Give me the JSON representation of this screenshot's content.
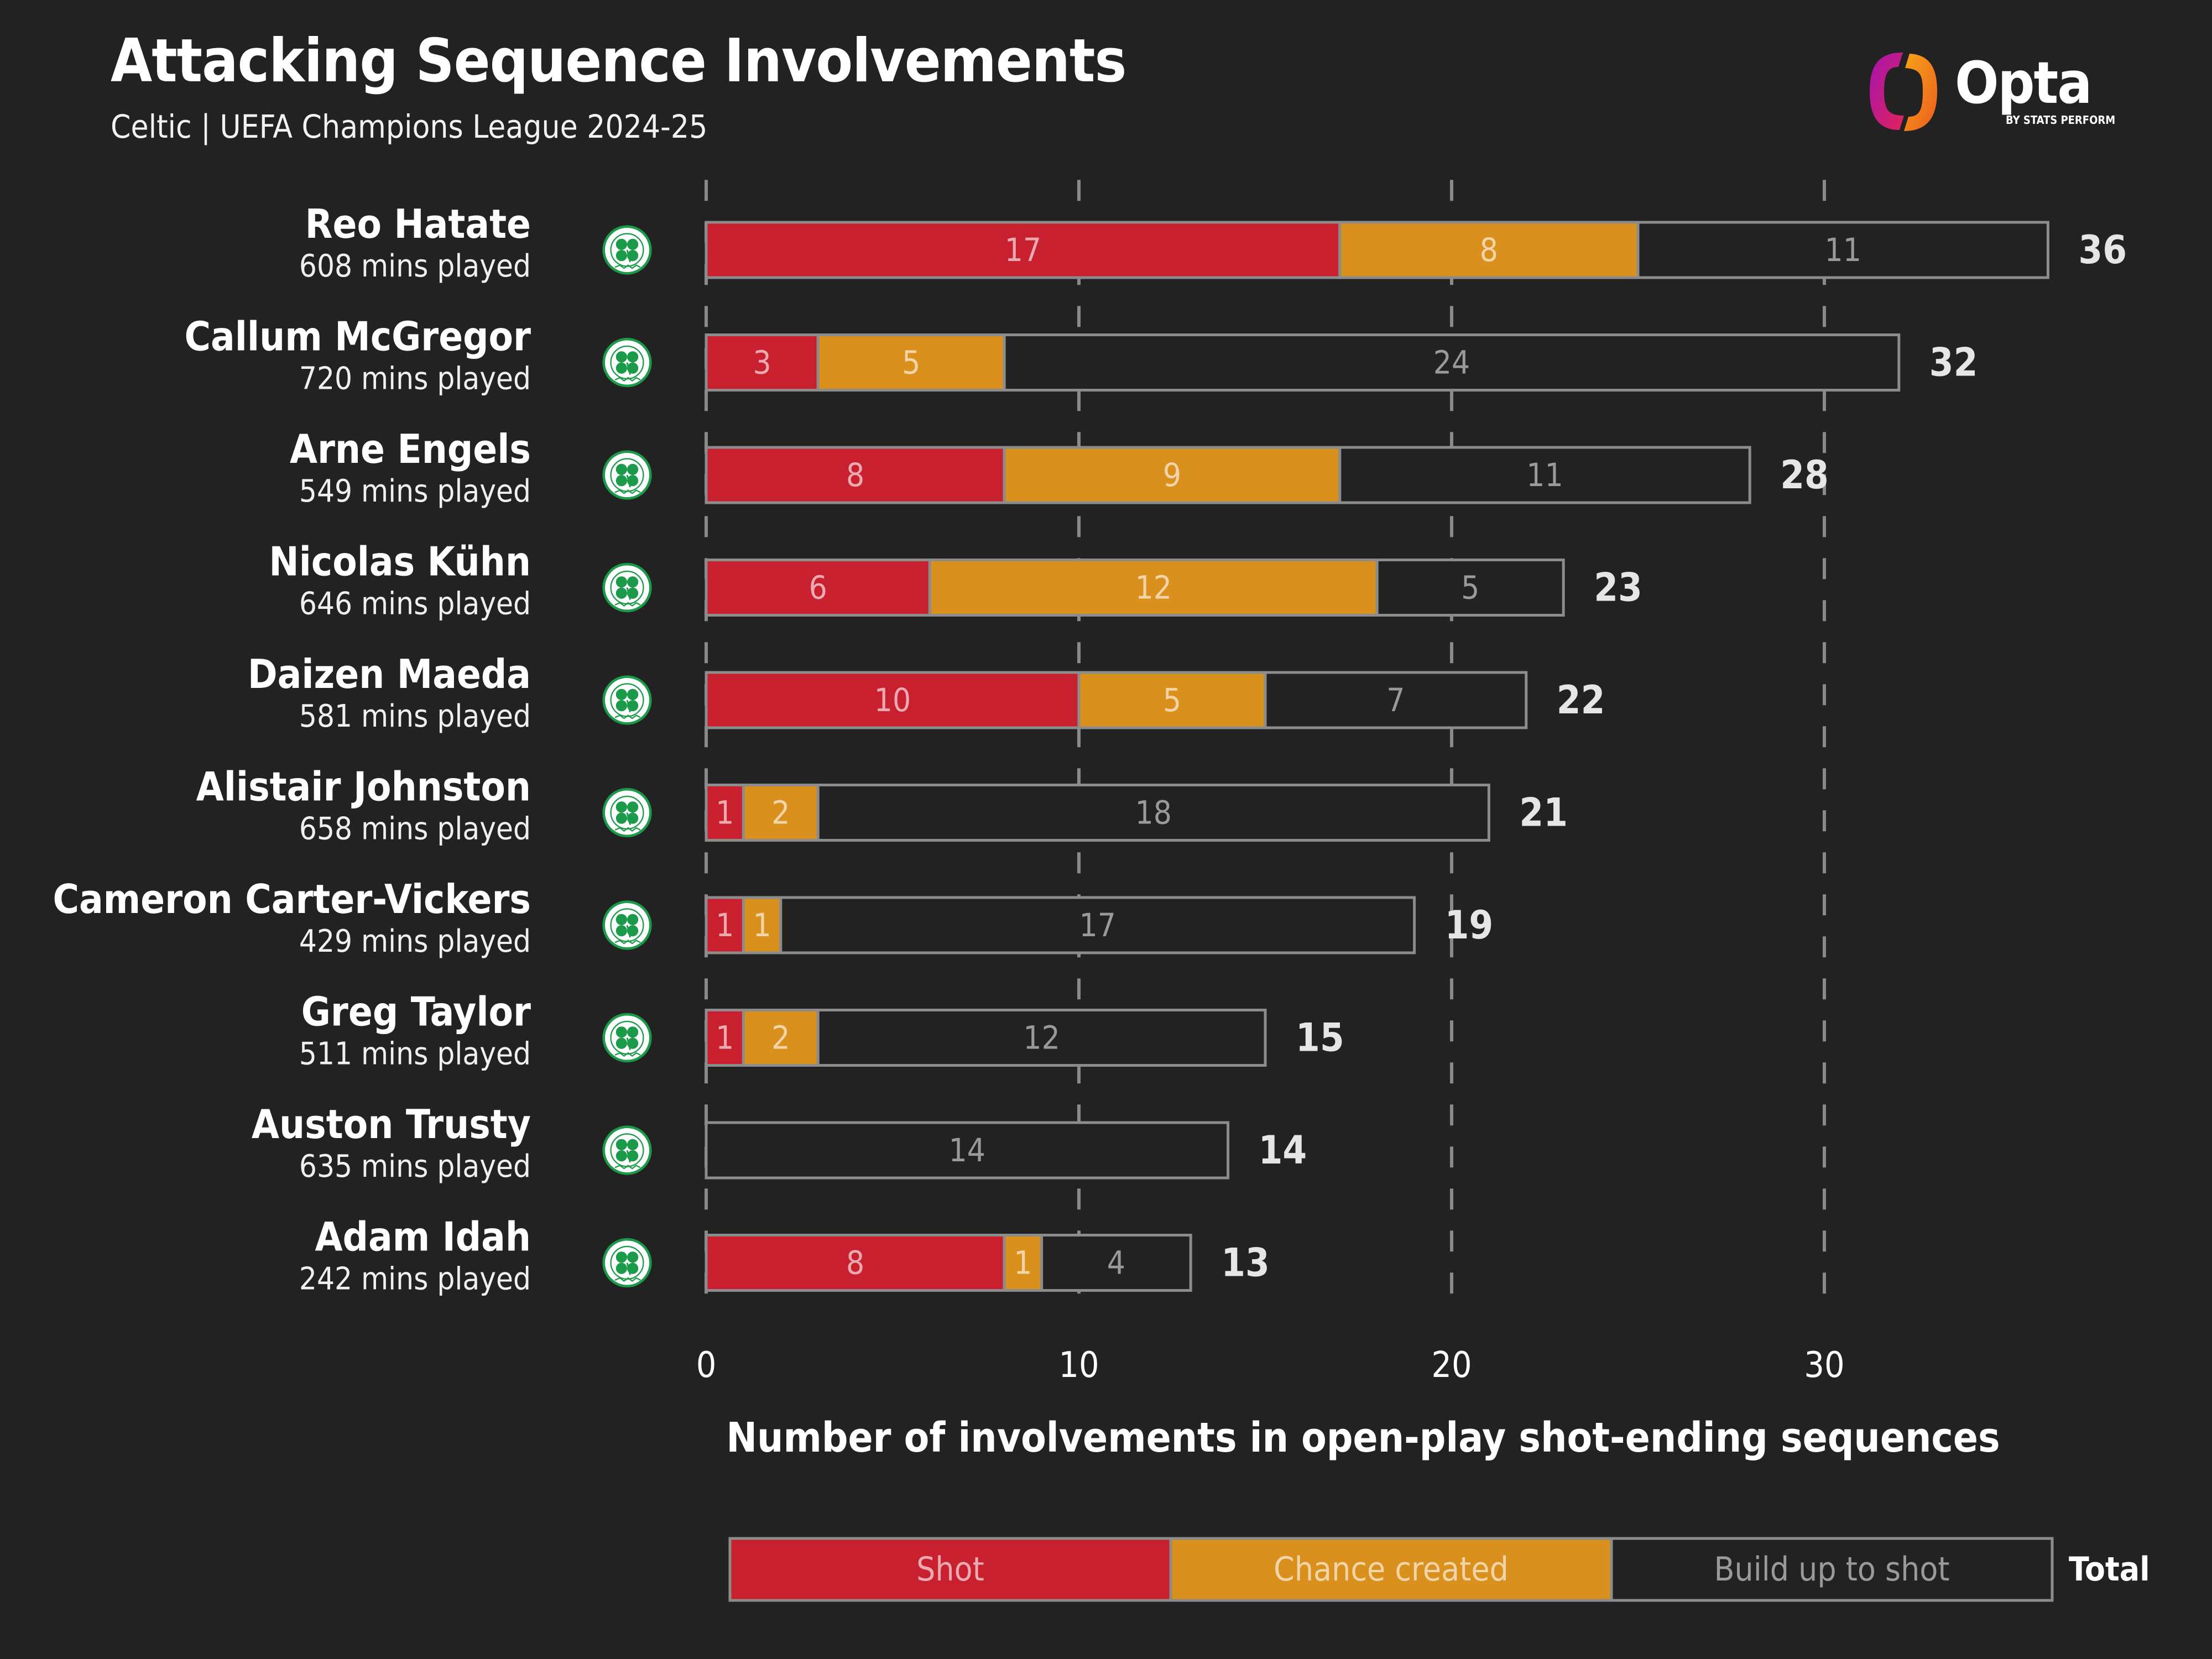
{
  "header": {
    "title": "Attacking Sequence Involvements",
    "subtitle": "Celtic | UEFA Champions League 2024-25"
  },
  "logo": {
    "wordmark": "Opta",
    "byline": "BY STATS PERFORM",
    "icon": "opta-logo-icon"
  },
  "colors": {
    "background": "#222222",
    "shot": "#C8202E",
    "chance": "#D9901C",
    "buildup": "#222222",
    "outline": "#8C8C8C",
    "grid": "#8A8A8A"
  },
  "chart_data": {
    "type": "bar",
    "orientation": "horizontal",
    "stacked": true,
    "title": "Attacking Sequence Involvements",
    "subtitle": "Celtic | UEFA Champions League 2024-25",
    "xlabel": "Number of involvements in open-play shot-ending sequences",
    "ylabel": "",
    "xlim": [
      0,
      36
    ],
    "xticks": [
      0,
      10,
      20,
      30
    ],
    "grid": "vertical dashed",
    "legend": {
      "placement": "bottom",
      "entries": [
        "Shot",
        "Chance created",
        "Build up to shot"
      ],
      "total_label": "Total"
    },
    "categories": [
      "Reo Hatate",
      "Callum McGregor",
      "Arne Engels",
      "Nicolas Kühn",
      "Daizen Maeda",
      "Alistair Johnston",
      "Cameron Carter-Vickers",
      "Greg Taylor",
      "Auston Trusty",
      "Adam Idah"
    ],
    "minutes": [
      "608 mins played",
      "720 mins played",
      "549 mins played",
      "646 mins played",
      "581 mins played",
      "658 mins played",
      "429 mins played",
      "511 mins played",
      "635 mins played",
      "242 mins played"
    ],
    "series": [
      {
        "name": "Shot",
        "values": [
          17,
          3,
          8,
          6,
          10,
          1,
          1,
          1,
          0,
          8
        ]
      },
      {
        "name": "Chance created",
        "values": [
          8,
          5,
          9,
          12,
          5,
          2,
          1,
          2,
          0,
          1
        ]
      },
      {
        "name": "Build up to shot",
        "values": [
          11,
          24,
          11,
          5,
          7,
          18,
          17,
          12,
          14,
          4
        ]
      }
    ],
    "totals": [
      36,
      32,
      28,
      23,
      22,
      21,
      19,
      15,
      14,
      13
    ]
  }
}
